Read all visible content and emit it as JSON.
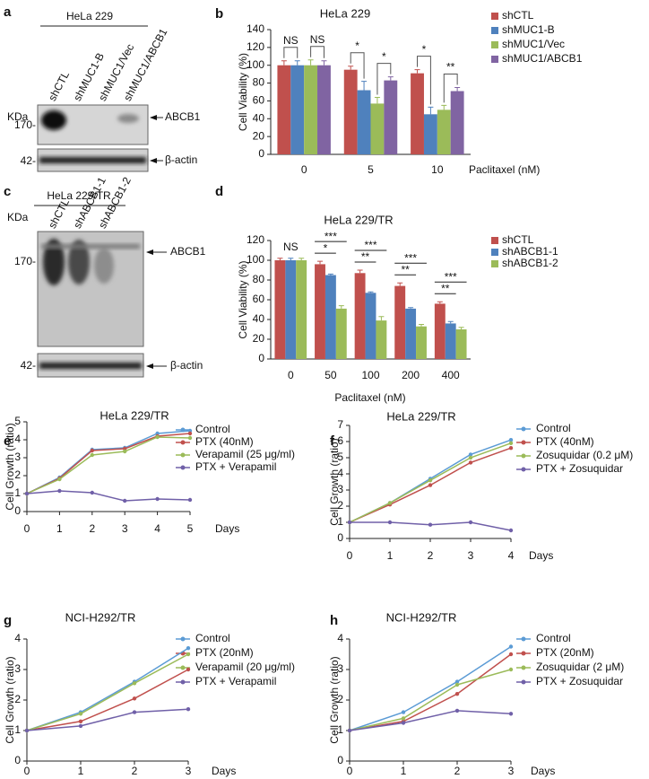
{
  "chart_data": [
    {
      "type": "bar",
      "panel": "b",
      "title": "HeLa 229",
      "categories": [
        "0",
        "5",
        "10"
      ],
      "x_label": "Paclitaxel (nM)",
      "y_label": "Cell Viability (%)",
      "ylim": [
        0,
        140
      ],
      "yticks": [
        0,
        20,
        40,
        60,
        80,
        100,
        120,
        140
      ],
      "series": [
        {
          "name": "shCTL",
          "color": "#c0504d",
          "values": [
            100,
            95,
            91
          ],
          "errors": [
            5,
            4,
            4
          ]
        },
        {
          "name": "shMUC1-B",
          "color": "#4f81bd",
          "values": [
            100,
            72,
            45
          ],
          "errors": [
            5,
            10,
            8
          ]
        },
        {
          "name": "shMUC1/Vec",
          "color": "#9bbb59",
          "values": [
            100,
            57,
            50
          ],
          "errors": [
            6,
            7,
            5
          ]
        },
        {
          "name": "shMUC1/ABCB1",
          "color": "#8064a2",
          "values": [
            100,
            83,
            71
          ],
          "errors": [
            5,
            4,
            4
          ]
        }
      ],
      "annotations": [
        "NS",
        "NS",
        "*",
        "*",
        "*",
        "**"
      ]
    },
    {
      "type": "bar",
      "panel": "d",
      "title": "HeLa 229/TR",
      "categories": [
        "0",
        "50",
        "100",
        "200",
        "400"
      ],
      "x_label": "Paclitaxel (nM)",
      "y_label": "Cell Viability (%)",
      "ylim": [
        0,
        120
      ],
      "yticks": [
        0,
        20,
        40,
        60,
        80,
        100,
        120
      ],
      "series": [
        {
          "name": "shCTL",
          "color": "#c0504d",
          "values": [
            100,
            96,
            87,
            74,
            56
          ],
          "errors": [
            2,
            3,
            3,
            3,
            2
          ]
        },
        {
          "name": "shABCB1-1",
          "color": "#4f81bd",
          "values": [
            100,
            85,
            67,
            51,
            36
          ],
          "errors": [
            2,
            1,
            1,
            1,
            2
          ]
        },
        {
          "name": "shABCB1-2",
          "color": "#9bbb59",
          "values": [
            100,
            51,
            39,
            33,
            30
          ],
          "errors": [
            2,
            3,
            4,
            2,
            2
          ]
        }
      ],
      "annotations": [
        "NS",
        "***",
        "*",
        "***",
        "**",
        "***",
        "**",
        "***",
        "**"
      ]
    },
    {
      "type": "line",
      "panel": "e",
      "title": "HeLa 229/TR",
      "x": [
        0,
        1,
        2,
        3,
        4,
        5
      ],
      "x_label": "Days",
      "y_label": "Cell Growth (ratio)",
      "xlim": [
        0,
        5
      ],
      "xticks": [
        0,
        1,
        2,
        3,
        4,
        5
      ],
      "ylim": [
        0,
        5
      ],
      "yticks": [
        0,
        1,
        2,
        3,
        4,
        5
      ],
      "series": [
        {
          "name": "Control",
          "color": "#5b9bd5",
          "values": [
            1,
            1.9,
            3.45,
            3.55,
            4.35,
            4.5
          ]
        },
        {
          "name": "PTX (40nM)",
          "color": "#c0504d",
          "values": [
            1,
            1.85,
            3.4,
            3.5,
            4.2,
            4.35
          ]
        },
        {
          "name": "Verapamil (25 μg/ml)",
          "color": "#9bbb59",
          "values": [
            1,
            1.8,
            3.15,
            3.35,
            4.15,
            4.1
          ]
        },
        {
          "name": "PTX + Verapamil",
          "color": "#7060a8",
          "values": [
            1,
            1.15,
            1.05,
            0.6,
            0.7,
            0.65
          ]
        }
      ]
    },
    {
      "type": "line",
      "panel": "f",
      "title": "HeLa 229/TR",
      "x": [
        0,
        1,
        2,
        3,
        4
      ],
      "x_label": "Days",
      "y_label": "Cell Growth (ratio)",
      "xlim": [
        0,
        4
      ],
      "xticks": [
        0,
        1,
        2,
        3,
        4
      ],
      "ylim": [
        0,
        7
      ],
      "yticks": [
        0,
        1,
        2,
        3,
        4,
        5,
        6,
        7
      ],
      "series": [
        {
          "name": "Control",
          "color": "#5b9bd5",
          "values": [
            1,
            2.2,
            3.7,
            5.2,
            6.1
          ]
        },
        {
          "name": "PTX (40nM)",
          "color": "#c0504d",
          "values": [
            1,
            2.1,
            3.3,
            4.7,
            5.6
          ]
        },
        {
          "name": "Zosuquidar (0.2 μM)",
          "color": "#9bbb59",
          "values": [
            1,
            2.2,
            3.6,
            5.0,
            5.9
          ]
        },
        {
          "name": "PTX + Zosuquidar",
          "color": "#7060a8",
          "values": [
            1,
            1.0,
            0.85,
            1.0,
            0.5
          ]
        }
      ]
    },
    {
      "type": "line",
      "panel": "g",
      "title": "NCI-H292/TR",
      "x": [
        0,
        1,
        2,
        3
      ],
      "x_label": "Days",
      "y_label": "Cell Growth (ratio)",
      "xlim": [
        0,
        3
      ],
      "xticks": [
        0,
        1,
        2,
        3
      ],
      "ylim": [
        0,
        4
      ],
      "yticks": [
        0,
        1,
        2,
        3,
        4
      ],
      "series": [
        {
          "name": "Control",
          "color": "#5b9bd5",
          "values": [
            1,
            1.6,
            2.6,
            3.7
          ]
        },
        {
          "name": "PTX (20nM)",
          "color": "#c0504d",
          "values": [
            1,
            1.3,
            2.05,
            3.0
          ]
        },
        {
          "name": "Verapamil (20 μg/ml)",
          "color": "#9bbb59",
          "values": [
            1,
            1.55,
            2.55,
            3.5
          ]
        },
        {
          "name": "PTX + Verapamil",
          "color": "#7060a8",
          "values": [
            1,
            1.15,
            1.6,
            1.7
          ]
        }
      ]
    },
    {
      "type": "line",
      "panel": "h",
      "title": "NCI-H292/TR",
      "x": [
        0,
        1,
        2,
        3
      ],
      "x_label": "Days",
      "y_label": "Cell Growth (ratio)",
      "xlim": [
        0,
        3
      ],
      "xticks": [
        0,
        1,
        2,
        3
      ],
      "ylim": [
        0,
        4
      ],
      "yticks": [
        0,
        1,
        2,
        3,
        4
      ],
      "series": [
        {
          "name": "Control",
          "color": "#5b9bd5",
          "values": [
            1,
            1.6,
            2.6,
            3.75
          ]
        },
        {
          "name": "PTX (20nM)",
          "color": "#c0504d",
          "values": [
            1,
            1.3,
            2.2,
            3.5
          ]
        },
        {
          "name": "Zosuquidar (2 μM)",
          "color": "#9bbb59",
          "values": [
            1,
            1.4,
            2.5,
            3.0
          ]
        },
        {
          "name": "PTX + Zosuquidar",
          "color": "#7060a8",
          "values": [
            1,
            1.25,
            1.65,
            1.55
          ]
        }
      ]
    }
  ],
  "blots": [
    {
      "panel": "a",
      "header": "HeLa 229",
      "lanes": [
        "shCTL",
        "shMUC1-B",
        "shMUC1/Vec",
        "shMUC1/ABCB1"
      ],
      "size_unit": "KDa",
      "markers": [
        "170-",
        "42-"
      ],
      "proteins": [
        "ABCB1",
        "β-actin"
      ]
    },
    {
      "panel": "c",
      "header": "HeLa 229/TR",
      "lanes": [
        "shCTL",
        "shABCB1-1",
        "shABCB1-2"
      ],
      "size_unit": "KDa",
      "markers": [
        "170-",
        "42-"
      ],
      "proteins": [
        "ABCB1",
        "β-actin"
      ]
    }
  ]
}
